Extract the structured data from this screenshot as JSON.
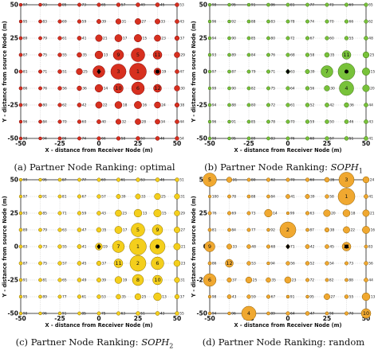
{
  "figure": {
    "panels": [
      {
        "id": "a",
        "caption_prefix": "(a) Partner Node Ranking: ",
        "method": "optimal",
        "method_sub": "",
        "method_style": "plain",
        "colors": {
          "fill": "#d7301f",
          "stroke": "#7f0000"
        }
      },
      {
        "id": "b",
        "caption_prefix": "(b) Partner Node Ranking: ",
        "method": "SOPH",
        "method_sub": "1",
        "method_style": "italic",
        "colors": {
          "fill": "#78c23a",
          "stroke": "#3b6e12"
        }
      },
      {
        "id": "c",
        "caption_prefix": "(c) Partner Node Ranking: ",
        "method": "SOPH",
        "method_sub": "2",
        "method_style": "italic",
        "colors": {
          "fill": "#f4cf1c",
          "stroke": "#8a6d00"
        }
      },
      {
        "id": "d",
        "caption_prefix": "(d) Partner Node Ranking: ",
        "method": "random",
        "method_sub": "",
        "method_style": "plain",
        "colors": {
          "fill": "#f0a830",
          "stroke": "#8a5a00"
        }
      }
    ]
  },
  "chart_data": [
    {
      "type": "scatter",
      "panel": "a",
      "xlabel": "X - distance from Receiver Node (m)",
      "ylabel": "Y - distance from source Node (m)",
      "xlim": [
        -50,
        50
      ],
      "ylim": [
        -50,
        50
      ],
      "xticks": [
        -50,
        -25,
        0,
        25,
        50
      ],
      "yticks": [
        -50,
        -25,
        0,
        25,
        50
      ],
      "grid": true,
      "nodes_x": [
        -50,
        -37.5,
        -25,
        -12.5,
        0,
        12.5,
        25,
        37.5,
        50
      ],
      "nodes_y": [
        50,
        37.5,
        25,
        12.5,
        0,
        -12.5,
        -25,
        -37.5,
        -50
      ],
      "receiver": [
        0,
        0
      ],
      "source": [
        37.5,
        0
      ],
      "ranks": [
        [
          97,
          93,
          85,
          73,
          65,
          57,
          49,
          45,
          53
        ],
        [
          95,
          83,
          69,
          59,
          39,
          31,
          27,
          33,
          43
        ],
        [
          89,
          79,
          61,
          41,
          21,
          17,
          15,
          23,
          37
        ],
        [
          87,
          75,
          55,
          35,
          13,
          9,
          5,
          11,
          29
        ],
        [
          81,
          71,
          51,
          25,
          7,
          3,
          1,
          19,
          47
        ],
        [
          86,
          76,
          56,
          36,
          14,
          10,
          6,
          12,
          30
        ],
        [
          90,
          80,
          62,
          42,
          22,
          18,
          16,
          24,
          38
        ],
        [
          96,
          84,
          70,
          60,
          40,
          32,
          28,
          34,
          44
        ],
        [
          98,
          94,
          86,
          74,
          66,
          58,
          50,
          46,
          54
        ]
      ]
    },
    {
      "type": "scatter",
      "panel": "b",
      "xlabel": "X - distance from Receiver Node (m)",
      "ylabel": "Y - distance from source Node (m)",
      "xlim": [
        -50,
        50
      ],
      "ylim": [
        -50,
        50
      ],
      "xticks": [
        -50,
        -25,
        0,
        25,
        50
      ],
      "yticks": [
        -50,
        -25,
        0,
        25,
        50
      ],
      "grid": true,
      "nodes_x": [
        -50,
        -37.5,
        -25,
        -12.5,
        0,
        12.5,
        25,
        37.5,
        50
      ],
      "nodes_y": [
        50,
        37.5,
        25,
        12.5,
        0,
        -12.5,
        -25,
        -37.5,
        -50
      ],
      "receiver": [
        0,
        0
      ],
      "source": [
        37.5,
        0
      ],
      "ranks": [
        [
          98,
          95,
          91,
          86,
          81,
          77,
          73,
          69,
          65
        ],
        [
          96,
          92,
          88,
          83,
          78,
          74,
          70,
          66,
          62
        ],
        [
          94,
          90,
          85,
          80,
          72,
          67,
          60,
          55,
          48
        ],
        [
          93,
          89,
          84,
          76,
          68,
          58,
          35,
          11,
          25
        ],
        [
          97,
          87,
          79,
          71,
          63,
          39,
          7,
          1,
          15
        ],
        [
          99,
          90,
          82,
          75,
          64,
          56,
          30,
          4,
          20
        ],
        [
          94,
          88,
          80,
          72,
          61,
          52,
          42,
          36,
          44
        ],
        [
          96,
          91,
          85,
          78,
          70,
          59,
          50,
          46,
          43
        ],
        [
          98,
          95,
          89,
          83,
          76,
          68,
          57,
          51,
          41
        ]
      ]
    },
    {
      "type": "scatter",
      "panel": "c",
      "xlabel": "X - distance from Receiver Node (m)",
      "ylabel": "Y - distance from source Node (m)",
      "xlim": [
        -50,
        50
      ],
      "ylim": [
        -50,
        50
      ],
      "xticks": [
        -50,
        -25,
        0,
        25,
        50
      ],
      "yticks": [
        -50,
        -25,
        0,
        25,
        50
      ],
      "grid": true,
      "nodes_x": [
        -50,
        -37.5,
        -25,
        -12.5,
        0,
        12.5,
        25,
        37.5,
        50
      ],
      "nodes_y": [
        50,
        37.5,
        25,
        12.5,
        0,
        -12.5,
        -25,
        -37.5,
        -50
      ],
      "receiver": [
        0,
        0
      ],
      "source": [
        37.5,
        0
      ],
      "ranks": [
        [
          99,
          95,
          87,
          77,
          69,
          61,
          53,
          45,
          51
        ],
        [
          97,
          91,
          81,
          67,
          57,
          39,
          33,
          25,
          31
        ],
        [
          93,
          85,
          71,
          59,
          43,
          23,
          13,
          15,
          29
        ],
        [
          89,
          79,
          63,
          47,
          35,
          17,
          5,
          9,
          27
        ],
        [
          83,
          73,
          55,
          41,
          19,
          7,
          1,
          3,
          21
        ],
        [
          87,
          75,
          57,
          45,
          37,
          11,
          2,
          6,
          23
        ],
        [
          91,
          81,
          65,
          49,
          39,
          19,
          8,
          10,
          31
        ],
        [
          95,
          89,
          77,
          61,
          53,
          35,
          25,
          13,
          37
        ],
        [
          98,
          96,
          91,
          85,
          75,
          63,
          51,
          43,
          55
        ]
      ]
    },
    {
      "type": "scatter",
      "panel": "d",
      "xlabel": "X - distance from Receiver Node (m)",
      "ylabel": "Y - distance from source Node (m)",
      "xlim": [
        -50,
        50
      ],
      "ylim": [
        -50,
        50
      ],
      "xticks": [
        -50,
        -25,
        0,
        25,
        50
      ],
      "yticks": [
        -50,
        -25,
        0,
        25,
        50
      ],
      "grid": true,
      "nodes_x": [
        -50,
        -37.5,
        -25,
        -12.5,
        0,
        12.5,
        25,
        37.5,
        50
      ],
      "nodes_y": [
        50,
        37.5,
        25,
        12.5,
        0,
        -12.5,
        -25,
        -37.5,
        -50
      ],
      "receiver": [
        0,
        0
      ],
      "source": [
        37.5,
        0
      ],
      "ranks": [
        [
          5,
          31,
          80,
          62,
          70,
          60,
          35,
          3,
          24
        ],
        [
          100,
          78,
          88,
          84,
          41,
          39,
          58,
          1,
          41
        ],
        [
          76,
          69,
          73,
          14,
          99,
          63,
          20,
          18,
          21
        ],
        [
          81,
          84,
          77,
          92,
          2,
          87,
          38,
          22,
          16
        ],
        [
          9,
          33,
          48,
          68,
          71,
          42,
          45,
          11,
          83
        ],
        [
          86,
          12,
          53,
          94,
          56,
          52,
          54,
          73,
          56
        ],
        [
          6,
          37,
          25,
          35,
          23,
          72,
          82,
          88,
          44
        ],
        [
          98,
          43,
          59,
          67,
          91,
          95,
          27,
          55,
          13
        ],
        [
          94,
          96,
          4,
          89,
          64,
          47,
          90,
          70,
          10
        ]
      ]
    }
  ]
}
